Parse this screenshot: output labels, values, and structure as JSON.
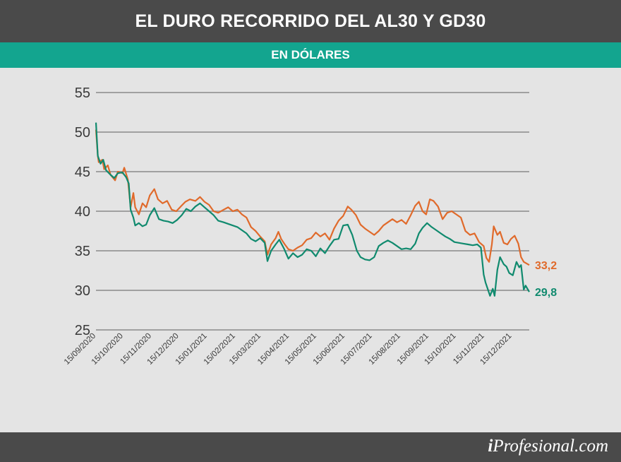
{
  "header": {
    "title": "EL DURO RECORRIDO DEL AL30 Y GD30",
    "subtitle": "EN DÓLARES"
  },
  "footer": {
    "brand_prefix": "i",
    "brand_rest": "Profesional.com"
  },
  "colors": {
    "al30": "#e06a2b",
    "gd30": "#108a6e",
    "grid": "#a0a0a0",
    "header_bg": "#4a4a4a",
    "subheader_bg": "#13a58f"
  },
  "chart_data": {
    "type": "line",
    "title": "EL DURO RECORRIDO DEL AL30 Y GD30",
    "subtitle": "EN DÓLARES",
    "ylim": [
      25,
      55
    ],
    "yticks": [
      25,
      30,
      35,
      40,
      45,
      50,
      55
    ],
    "grid": true,
    "x_range": [
      "2020-09-15",
      "2022-01-03"
    ],
    "xticks": [
      "15/09/2020",
      "15/10/2020",
      "15/11/2020",
      "15/12/2020",
      "15/01/2021",
      "15/02/2021",
      "15/03/2021",
      "15/04/2021",
      "15/05/2021",
      "15/06/2021",
      "15/07/2021",
      "15/08/2021",
      "15/09/2021",
      "15/10/2021",
      "15/11/2021",
      "15/12/2021"
    ],
    "series": [
      {
        "color_key": "al30",
        "end_label": "33,2",
        "points": [
          [
            "2020-09-15",
            50.3
          ],
          [
            "2020-09-17",
            47.0
          ],
          [
            "2020-09-18",
            46.2
          ],
          [
            "2020-09-22",
            46.5
          ],
          [
            "2020-09-24",
            45.3
          ],
          [
            "2020-09-28",
            45.8
          ],
          [
            "2020-10-01",
            44.6
          ],
          [
            "2020-10-06",
            43.9
          ],
          [
            "2020-10-09",
            45.0
          ],
          [
            "2020-10-14",
            44.8
          ],
          [
            "2020-10-16",
            45.5
          ],
          [
            "2020-10-20",
            44.0
          ],
          [
            "2020-10-23",
            40.5
          ],
          [
            "2020-10-26",
            42.3
          ],
          [
            "2020-10-28",
            40.5
          ],
          [
            "2020-11-01",
            39.6
          ],
          [
            "2020-11-05",
            41.0
          ],
          [
            "2020-11-09",
            40.5
          ],
          [
            "2020-11-13",
            42.0
          ],
          [
            "2020-11-18",
            42.8
          ],
          [
            "2020-11-22",
            41.5
          ],
          [
            "2020-11-27",
            41.0
          ],
          [
            "2020-12-02",
            41.3
          ],
          [
            "2020-12-07",
            40.2
          ],
          [
            "2020-12-12",
            40.0
          ],
          [
            "2020-12-17",
            40.6
          ],
          [
            "2020-12-22",
            41.2
          ],
          [
            "2020-12-27",
            41.5
          ],
          [
            "2021-01-02",
            41.3
          ],
          [
            "2021-01-07",
            41.8
          ],
          [
            "2021-01-12",
            41.2
          ],
          [
            "2021-01-17",
            40.8
          ],
          [
            "2021-01-22",
            40.0
          ],
          [
            "2021-01-27",
            39.8
          ],
          [
            "2021-02-02",
            40.2
          ],
          [
            "2021-02-07",
            40.5
          ],
          [
            "2021-02-12",
            40.0
          ],
          [
            "2021-02-17",
            40.2
          ],
          [
            "2021-02-22",
            39.6
          ],
          [
            "2021-02-27",
            39.2
          ],
          [
            "2021-03-04",
            38.0
          ],
          [
            "2021-03-09",
            37.5
          ],
          [
            "2021-03-14",
            36.8
          ],
          [
            "2021-03-19",
            36.2
          ],
          [
            "2021-03-22",
            34.5
          ],
          [
            "2021-03-26",
            35.8
          ],
          [
            "2021-03-31",
            36.6
          ],
          [
            "2021-04-03",
            37.4
          ],
          [
            "2021-04-06",
            36.5
          ],
          [
            "2021-04-10",
            35.8
          ],
          [
            "2021-04-14",
            35.2
          ],
          [
            "2021-04-19",
            35.0
          ],
          [
            "2021-04-24",
            35.4
          ],
          [
            "2021-04-29",
            35.7
          ],
          [
            "2021-05-04",
            36.4
          ],
          [
            "2021-05-09",
            36.6
          ],
          [
            "2021-05-14",
            37.3
          ],
          [
            "2021-05-19",
            36.8
          ],
          [
            "2021-05-24",
            37.2
          ],
          [
            "2021-05-29",
            36.4
          ],
          [
            "2021-06-03",
            37.8
          ],
          [
            "2021-06-08",
            38.8
          ],
          [
            "2021-06-13",
            39.4
          ],
          [
            "2021-06-18",
            40.6
          ],
          [
            "2021-06-22",
            40.2
          ],
          [
            "2021-06-27",
            39.5
          ],
          [
            "2021-07-02",
            38.3
          ],
          [
            "2021-07-07",
            37.8
          ],
          [
            "2021-07-12",
            37.4
          ],
          [
            "2021-07-17",
            37.0
          ],
          [
            "2021-07-22",
            37.5
          ],
          [
            "2021-07-27",
            38.2
          ],
          [
            "2021-08-01",
            38.6
          ],
          [
            "2021-08-06",
            39.0
          ],
          [
            "2021-08-11",
            38.6
          ],
          [
            "2021-08-16",
            38.9
          ],
          [
            "2021-08-21",
            38.4
          ],
          [
            "2021-08-26",
            39.5
          ],
          [
            "2021-08-31",
            40.7
          ],
          [
            "2021-09-04",
            41.2
          ],
          [
            "2021-09-08",
            40.0
          ],
          [
            "2021-09-12",
            39.6
          ],
          [
            "2021-09-16",
            41.5
          ],
          [
            "2021-09-20",
            41.3
          ],
          [
            "2021-09-25",
            40.6
          ],
          [
            "2021-09-30",
            39.0
          ],
          [
            "2021-10-05",
            39.8
          ],
          [
            "2021-10-10",
            40.0
          ],
          [
            "2021-10-15",
            39.6
          ],
          [
            "2021-10-20",
            39.2
          ],
          [
            "2021-10-25",
            37.5
          ],
          [
            "2021-10-30",
            37.0
          ],
          [
            "2021-11-04",
            37.2
          ],
          [
            "2021-11-09",
            36.1
          ],
          [
            "2021-11-14",
            35.6
          ],
          [
            "2021-11-17",
            34.1
          ],
          [
            "2021-11-20",
            33.6
          ],
          [
            "2021-11-23",
            35.8
          ],
          [
            "2021-11-25",
            38.1
          ],
          [
            "2021-11-29",
            37.0
          ],
          [
            "2021-12-02",
            37.4
          ],
          [
            "2021-12-06",
            36.0
          ],
          [
            "2021-12-10",
            35.8
          ],
          [
            "2021-12-14",
            36.5
          ],
          [
            "2021-12-18",
            36.9
          ],
          [
            "2021-12-22",
            35.9
          ],
          [
            "2021-12-25",
            34.2
          ],
          [
            "2021-12-28",
            33.6
          ],
          [
            "2022-01-03",
            33.2
          ]
        ]
      },
      {
        "color_key": "gd30",
        "end_label": "29,8",
        "points": [
          [
            "2020-09-15",
            51.2
          ],
          [
            "2020-09-17",
            47.0
          ],
          [
            "2020-09-20",
            46.0
          ],
          [
            "2020-09-23",
            46.5
          ],
          [
            "2020-09-26",
            45.2
          ],
          [
            "2020-10-01",
            44.6
          ],
          [
            "2020-10-05",
            44.2
          ],
          [
            "2020-10-09",
            44.8
          ],
          [
            "2020-10-14",
            44.9
          ],
          [
            "2020-10-18",
            44.3
          ],
          [
            "2020-10-21",
            43.5
          ],
          [
            "2020-10-23",
            40.2
          ],
          [
            "2020-10-26",
            39.2
          ],
          [
            "2020-10-28",
            38.2
          ],
          [
            "2020-11-01",
            38.5
          ],
          [
            "2020-11-05",
            38.1
          ],
          [
            "2020-11-09",
            38.3
          ],
          [
            "2020-11-13",
            39.5
          ],
          [
            "2020-11-18",
            40.4
          ],
          [
            "2020-11-23",
            39.0
          ],
          [
            "2020-11-28",
            38.8
          ],
          [
            "2020-12-03",
            38.7
          ],
          [
            "2020-12-08",
            38.5
          ],
          [
            "2020-12-13",
            38.9
          ],
          [
            "2020-12-18",
            39.5
          ],
          [
            "2020-12-23",
            40.3
          ],
          [
            "2020-12-28",
            40.0
          ],
          [
            "2021-01-02",
            40.6
          ],
          [
            "2021-01-07",
            41.0
          ],
          [
            "2021-01-12",
            40.5
          ],
          [
            "2021-01-17",
            40.0
          ],
          [
            "2021-01-22",
            39.5
          ],
          [
            "2021-01-27",
            38.8
          ],
          [
            "2021-02-02",
            38.6
          ],
          [
            "2021-02-07",
            38.4
          ],
          [
            "2021-02-12",
            38.2
          ],
          [
            "2021-02-17",
            38.0
          ],
          [
            "2021-02-22",
            37.6
          ],
          [
            "2021-02-27",
            37.2
          ],
          [
            "2021-03-04",
            36.5
          ],
          [
            "2021-03-09",
            36.2
          ],
          [
            "2021-03-14",
            36.6
          ],
          [
            "2021-03-19",
            36.0
          ],
          [
            "2021-03-22",
            33.7
          ],
          [
            "2021-03-26",
            35.0
          ],
          [
            "2021-03-31",
            35.8
          ],
          [
            "2021-04-04",
            36.4
          ],
          [
            "2021-04-09",
            35.3
          ],
          [
            "2021-04-14",
            34.0
          ],
          [
            "2021-04-19",
            34.7
          ],
          [
            "2021-04-24",
            34.2
          ],
          [
            "2021-04-29",
            34.5
          ],
          [
            "2021-05-04",
            35.2
          ],
          [
            "2021-05-09",
            35.0
          ],
          [
            "2021-05-14",
            34.3
          ],
          [
            "2021-05-19",
            35.3
          ],
          [
            "2021-05-24",
            34.7
          ],
          [
            "2021-05-29",
            35.6
          ],
          [
            "2021-06-03",
            36.4
          ],
          [
            "2021-06-08",
            36.5
          ],
          [
            "2021-06-13",
            38.2
          ],
          [
            "2021-06-18",
            38.3
          ],
          [
            "2021-06-23",
            37.0
          ],
          [
            "2021-06-28",
            35.0
          ],
          [
            "2021-07-02",
            34.2
          ],
          [
            "2021-07-07",
            33.9
          ],
          [
            "2021-07-12",
            33.8
          ],
          [
            "2021-07-17",
            34.2
          ],
          [
            "2021-07-22",
            35.6
          ],
          [
            "2021-07-27",
            36.0
          ],
          [
            "2021-08-01",
            36.3
          ],
          [
            "2021-08-06",
            36.0
          ],
          [
            "2021-08-11",
            35.6
          ],
          [
            "2021-08-16",
            35.2
          ],
          [
            "2021-08-21",
            35.3
          ],
          [
            "2021-08-26",
            35.2
          ],
          [
            "2021-08-31",
            35.9
          ],
          [
            "2021-09-04",
            37.2
          ],
          [
            "2021-09-08",
            37.9
          ],
          [
            "2021-09-13",
            38.5
          ],
          [
            "2021-09-18",
            38.0
          ],
          [
            "2021-09-23",
            37.6
          ],
          [
            "2021-09-28",
            37.2
          ],
          [
            "2021-10-03",
            36.8
          ],
          [
            "2021-10-08",
            36.5
          ],
          [
            "2021-10-13",
            36.1
          ],
          [
            "2021-10-18",
            36.0
          ],
          [
            "2021-10-23",
            35.9
          ],
          [
            "2021-10-28",
            35.8
          ],
          [
            "2021-11-02",
            35.7
          ],
          [
            "2021-11-07",
            35.8
          ],
          [
            "2021-11-11",
            35.4
          ],
          [
            "2021-11-14",
            32.0
          ],
          [
            "2021-11-16",
            31.0
          ],
          [
            "2021-11-19",
            30.0
          ],
          [
            "2021-11-21",
            29.3
          ],
          [
            "2021-11-24",
            30.2
          ],
          [
            "2021-11-26",
            29.3
          ],
          [
            "2021-11-29",
            32.6
          ],
          [
            "2021-12-02",
            34.2
          ],
          [
            "2021-12-06",
            33.3
          ],
          [
            "2021-12-09",
            33.0
          ],
          [
            "2021-12-12",
            32.2
          ],
          [
            "2021-12-16",
            31.9
          ],
          [
            "2021-12-20",
            33.6
          ],
          [
            "2021-12-23",
            32.9
          ],
          [
            "2021-12-25",
            33.2
          ],
          [
            "2021-12-28",
            30.1
          ],
          [
            "2021-12-30",
            30.6
          ],
          [
            "2022-01-03",
            29.8
          ]
        ]
      }
    ]
  }
}
